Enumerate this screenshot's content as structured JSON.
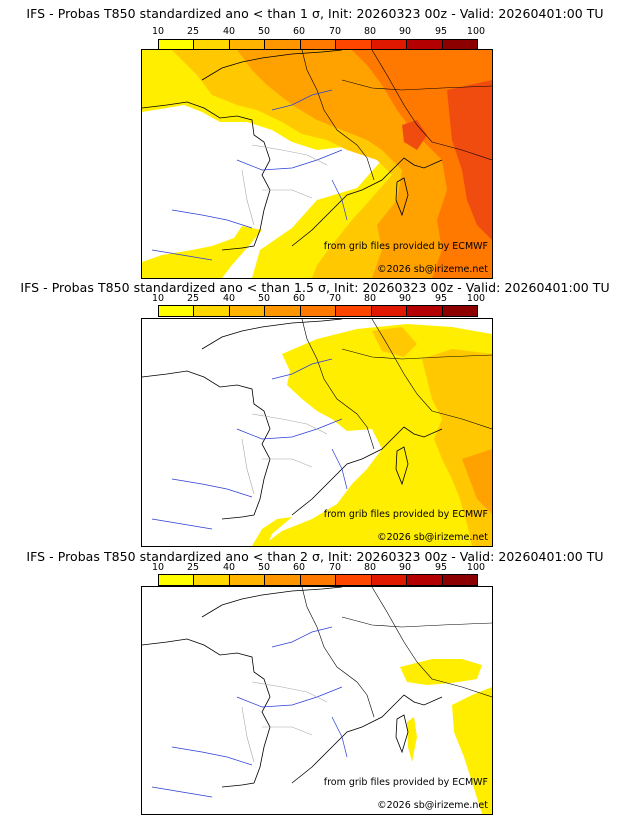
{
  "panels": [
    {
      "title": "IFS - Probas T850  standardized ano < than 1 σ, Init: 20260323 00z - Valid: 20260401:00 TU",
      "credit_source": "from grib files provided by ECMWF",
      "credit_copyright": "©2026 sb@irizeme.net",
      "threshold_sigma": "1"
    },
    {
      "title": "IFS - Probas T850  standardized ano < than 1.5 σ, Init: 20260323 00z - Valid: 20260401:00 TU",
      "credit_source": "from grib files provided by ECMWF",
      "credit_copyright": "©2026 sb@irizeme.net",
      "threshold_sigma": "1.5"
    },
    {
      "title": "IFS - Probas T850  standardized ano < than 2 σ, Init: 20260323 00z - Valid: 20260401:00 TU",
      "credit_source": "from grib files provided by ECMWF",
      "credit_copyright": "©2026 sb@irizeme.net",
      "threshold_sigma": "2"
    }
  ],
  "colorbar": {
    "ticks": [
      "10",
      "25",
      "40",
      "50",
      "60",
      "70",
      "80",
      "90",
      "95",
      "100"
    ],
    "colors": [
      "#ffff00",
      "#ffd800",
      "#ffb400",
      "#ff9600",
      "#ff7800",
      "#ff4600",
      "#e01800",
      "#b40000",
      "#8c0000"
    ]
  },
  "colors": {
    "land_border": "#000000",
    "rivers": "#2b3fd6",
    "admin_borders": "#a8a8a8",
    "prob_yellow": "#ffee00",
    "prob_gold": "#ffc800",
    "prob_orange": "#ffa200",
    "prob_deep_orange": "#ff7800",
    "prob_red": "#f04c10"
  }
}
